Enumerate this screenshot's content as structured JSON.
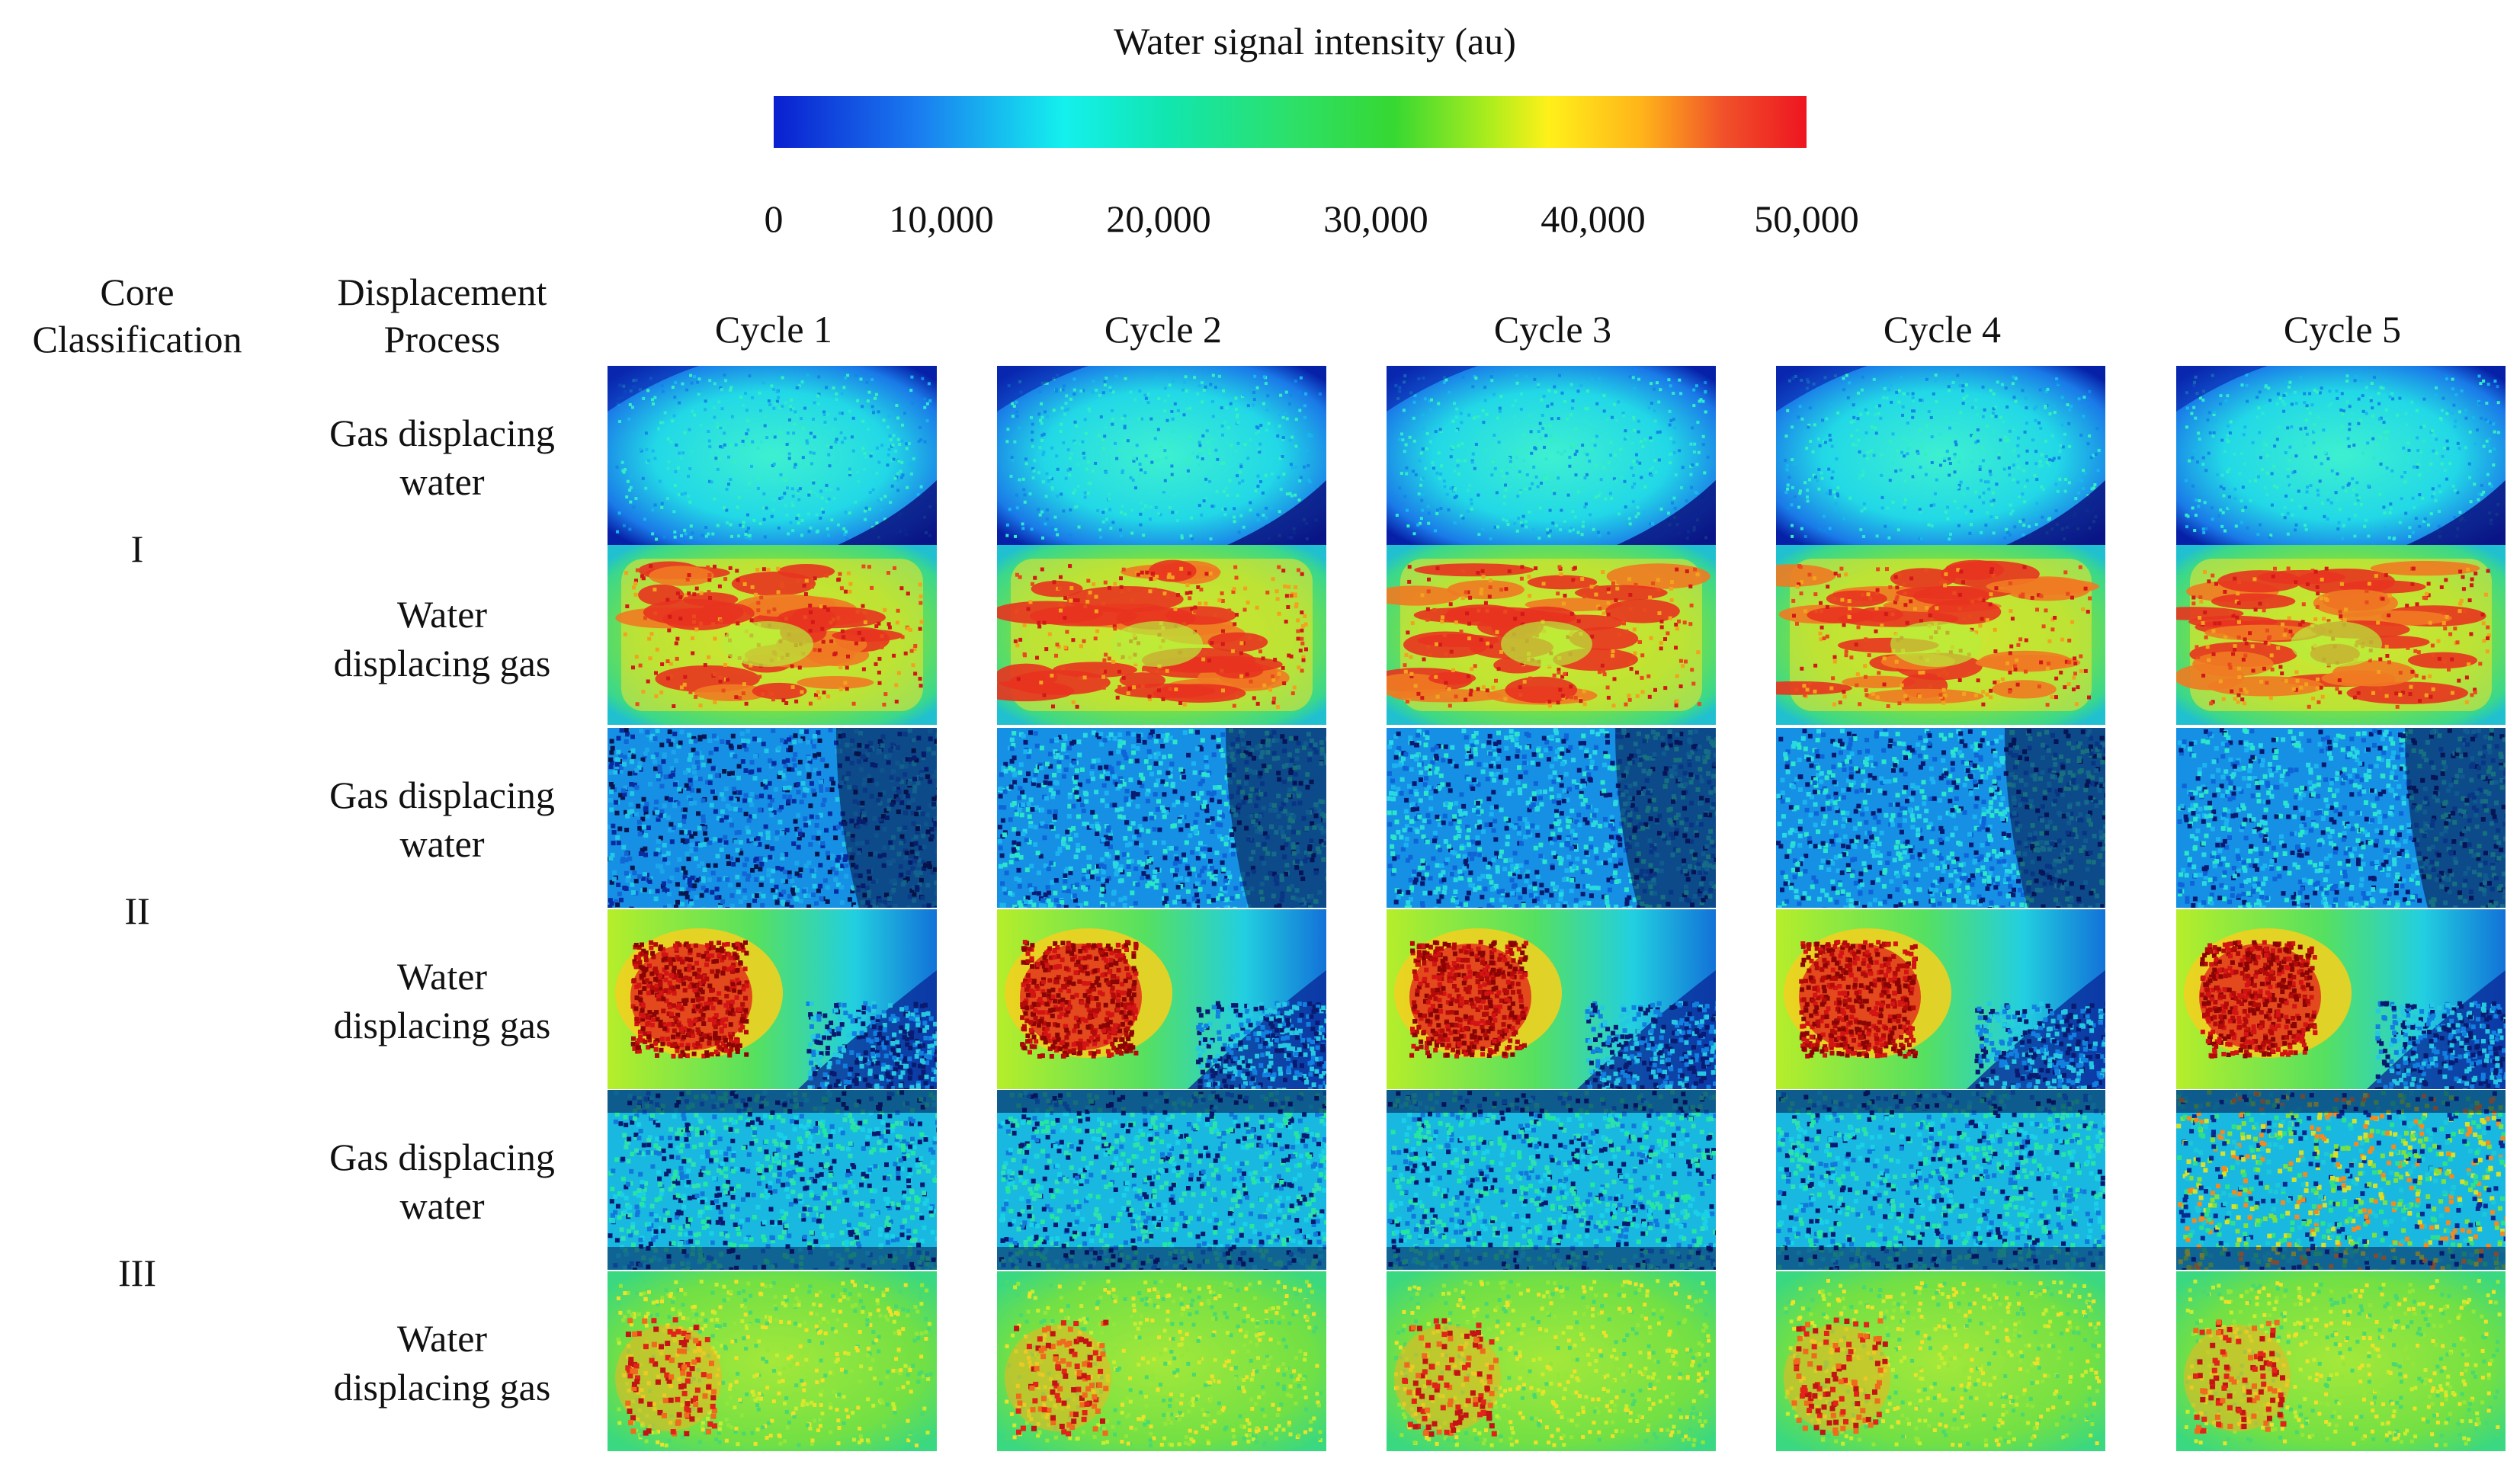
{
  "colorbar": {
    "title": "Water signal intensity (au)",
    "ticks": [
      "0",
      "10,000",
      "20,000",
      "30,000",
      "40,000",
      "50,000"
    ],
    "colors": [
      "#0a1fd0",
      "#14f0ee",
      "#2ce06a",
      "#fff01a",
      "#ee1520"
    ]
  },
  "headers": {
    "core_classification": [
      "Core",
      "Classification"
    ],
    "displacement_process": [
      "Displacement",
      "Process"
    ]
  },
  "columns": [
    "Cycle 1",
    "Cycle 2",
    "Cycle 3",
    "Cycle 4",
    "Cycle 5"
  ],
  "rows": [
    {
      "core": "I",
      "process": [
        "Gas displacing",
        "water"
      ],
      "map_pattern": "gas-uniform"
    },
    {
      "core": "I",
      "process": [
        "Water",
        "displacing gas"
      ],
      "map_pattern": "water-banded-high"
    },
    {
      "core": "II",
      "process": [
        "Gas displacing",
        "water"
      ],
      "map_pattern": "gas-noisy-low"
    },
    {
      "core": "II",
      "process": [
        "Water",
        "displacing gas"
      ],
      "map_pattern": "water-left-blob"
    },
    {
      "core": "III",
      "process": [
        "Gas displacing",
        "water"
      ],
      "map_pattern": "gas-speckled"
    },
    {
      "core": "III",
      "process": [
        "Water",
        "displacing gas"
      ],
      "map_pattern": "water-green-left-spots"
    }
  ],
  "core_groups": [
    "I",
    "II",
    "III"
  ]
}
